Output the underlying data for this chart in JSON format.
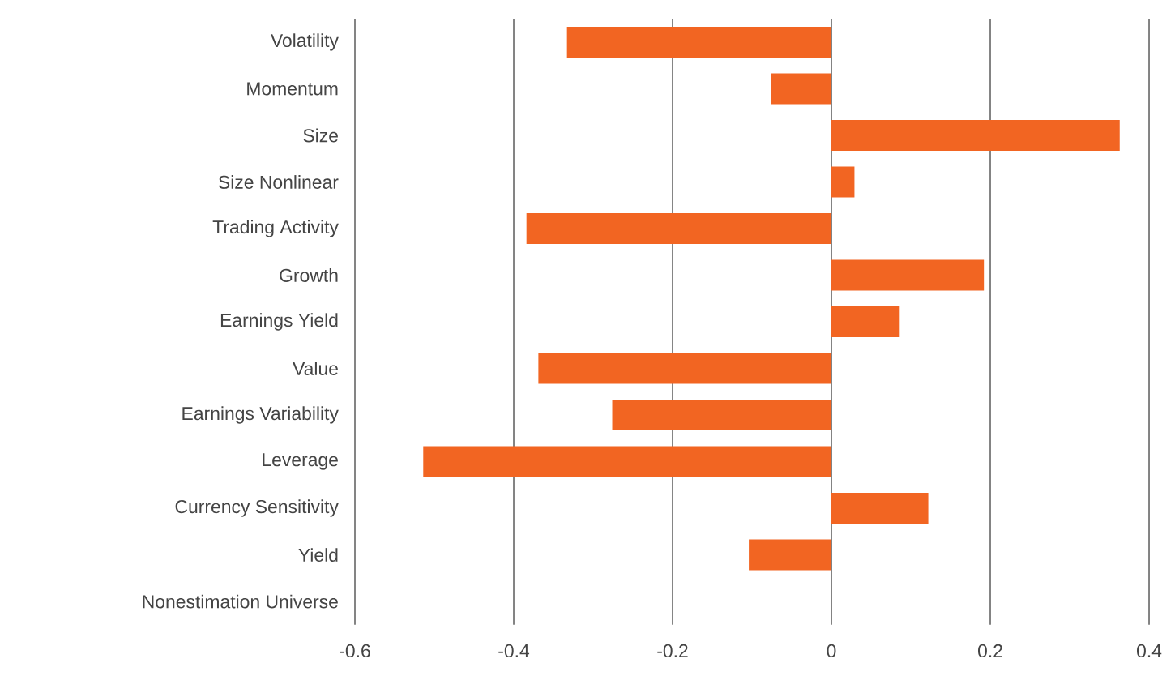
{
  "chart_data": {
    "type": "bar",
    "orientation": "horizontal",
    "categories": [
      "Volatility",
      "Momentum",
      "Size",
      "Size Nonlinear",
      "Trading Activity",
      "Growth",
      "Earnings Yield",
      "Value",
      "Earnings Variability",
      "Leverage",
      "Currency Sensitivity",
      "Yield",
      "Nonestimation Universe"
    ],
    "values": [
      -0.333,
      -0.076,
      0.363,
      0.029,
      -0.384,
      0.192,
      0.086,
      -0.369,
      -0.276,
      -0.514,
      0.122,
      -0.104,
      0
    ],
    "color": "#f26522",
    "xlim": [
      -0.6,
      0.4
    ],
    "xticks": [
      -0.6,
      -0.4,
      -0.2,
      0,
      0.2,
      0.4
    ],
    "grid": "x"
  }
}
